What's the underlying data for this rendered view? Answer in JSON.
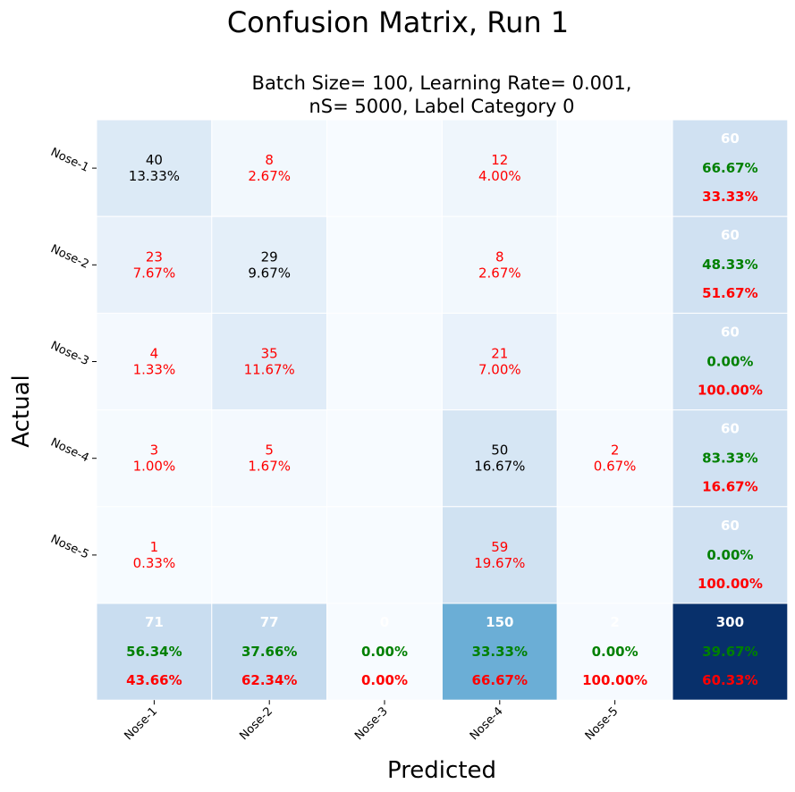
{
  "chart_data": {
    "type": "heatmap",
    "title": "Confusion Matrix, Run 1",
    "subtitle_lines": [
      "Batch Size= 100, Learning Rate= 0.001,",
      "nS= 5000, Label Category 0"
    ],
    "xlabel": "Predicted",
    "ylabel": "Actual",
    "x_tick_labels": [
      "Nose-1",
      "Nose-2",
      "Nose-3",
      "Nose-4",
      "Nose-5"
    ],
    "y_tick_labels": [
      "Nose-1",
      "Nose-2",
      "Nose-3",
      "Nose-4",
      "Nose-5"
    ],
    "colormap": "Blues",
    "matrix": [
      [
        40,
        8,
        0,
        12,
        0
      ],
      [
        23,
        29,
        0,
        8,
        0
      ],
      [
        4,
        35,
        0,
        21,
        0
      ],
      [
        3,
        5,
        0,
        50,
        2
      ],
      [
        1,
        0,
        0,
        59,
        0
      ]
    ],
    "matrix_percent": [
      [
        "13.33%",
        "2.67%",
        "",
        "4.00%",
        ""
      ],
      [
        "7.67%",
        "9.67%",
        "",
        "2.67%",
        ""
      ],
      [
        "1.33%",
        "11.67%",
        "",
        "7.00%",
        ""
      ],
      [
        "1.00%",
        "1.67%",
        "",
        "16.67%",
        "0.67%"
      ],
      [
        "0.33%",
        "",
        "",
        "19.67%",
        ""
      ]
    ],
    "row_totals": [
      {
        "total": 60,
        "correct": "66.67%",
        "error": "33.33%"
      },
      {
        "total": 60,
        "correct": "48.33%",
        "error": "51.67%"
      },
      {
        "total": 60,
        "correct": "0.00%",
        "error": "100.00%"
      },
      {
        "total": 60,
        "correct": "83.33%",
        "error": "16.67%"
      },
      {
        "total": 60,
        "correct": "0.00%",
        "error": "100.00%"
      }
    ],
    "col_totals": [
      {
        "total": 71,
        "correct": "56.34%",
        "error": "43.66%"
      },
      {
        "total": 77,
        "correct": "37.66%",
        "error": "62.34%"
      },
      {
        "total": 0,
        "correct": "0.00%",
        "error": "0.00%"
      },
      {
        "total": 150,
        "correct": "33.33%",
        "error": "66.67%"
      },
      {
        "total": 2,
        "correct": "0.00%",
        "error": "100.00%"
      }
    ],
    "grand_total": {
      "total": 300,
      "correct": "39.67%",
      "error": "60.33%"
    },
    "colorbar": false
  },
  "colors": {
    "diag_text": "#000000",
    "offdiag_text": "#ff0000",
    "correct_text": "#008000",
    "error_text": "#ff0000",
    "total_text": "#ffffff",
    "grid_line": "#ffffff"
  }
}
